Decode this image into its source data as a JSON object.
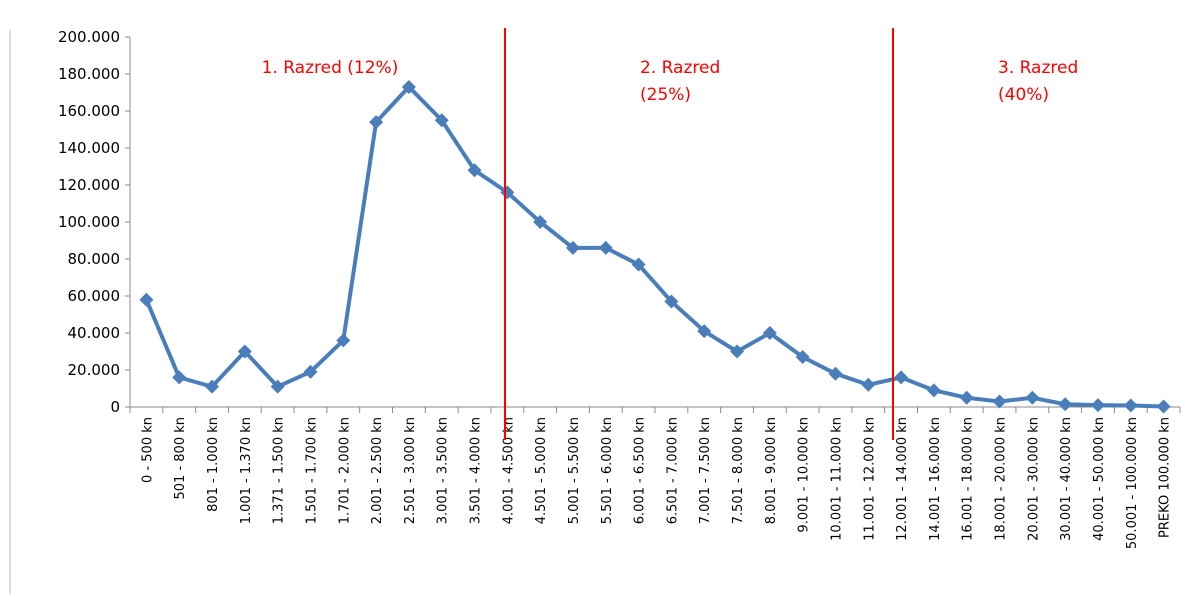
{
  "chart_data": {
    "type": "line",
    "categories": [
      "0 -  500 kn",
      "501 -  800 kn",
      "801 - 1.000 kn",
      "1.001 - 1.370 kn",
      "1.371 - 1.500 kn",
      "1.501 - 1.700 kn",
      "1.701 - 2.000 kn",
      "2.001 - 2.500 kn",
      "2.501 - 3.000 kn",
      "3.001 - 3.500 kn",
      "3.501 - 4.000 kn",
      "4.001 - 4.500 kn",
      "4.501 - 5.000 kn",
      "5.001 - 5.500 kn",
      "5.501 - 6.000 kn",
      "6.001 - 6.500 kn",
      "6.501 - 7.000 kn",
      "7.001 - 7.500 kn",
      "7.501 - 8.000 kn",
      "8.001 - 9.000 kn",
      "9.001 - 10.000 kn",
      "10.001 - 11.000 kn",
      "11.001 - 12.000 kn",
      "12.001 - 14.000 kn",
      "14.001 - 16.000 kn",
      "16.001 - 18.000 kn",
      "18.001 - 20.000 kn",
      "20.001 - 30.000 kn",
      "30.001 - 40.000 kn",
      "40.001 - 50.000 kn",
      "50.001 - 100.000 kn",
      "PREKO 100.000 kn"
    ],
    "series": [
      {
        "color": "#4a7ebb",
        "values": [
          58000,
          16000,
          11000,
          30000,
          11000,
          19000,
          36000,
          154000,
          173000,
          155000,
          128000,
          116000,
          100000,
          86000,
          86000,
          77000,
          57000,
          41000,
          30000,
          40000,
          27000,
          18000,
          12000,
          16000,
          9000,
          5000,
          3000,
          5000,
          1500,
          1000,
          800,
          300
        ]
      }
    ],
    "ylim": [
      0,
      200000
    ],
    "yticks": [
      0,
      {
        "value": 20000,
        "label": "20.000"
      },
      {
        "value": 40000,
        "label": "40.000"
      },
      {
        "value": 60000,
        "label": "60.000"
      },
      {
        "value": 80000,
        "label": "80.000"
      },
      {
        "value": 100000,
        "label": "100.000"
      },
      {
        "value": 120000,
        "label": "120.000"
      },
      {
        "value": 140000,
        "label": "140.000"
      },
      {
        "value": 160000,
        "label": "160.000"
      },
      {
        "value": 180000,
        "label": "180.000"
      },
      {
        "value": 200000,
        "label": "200.000"
      }
    ],
    "annotations": [
      {
        "lines": [
          "1. Razred (12%)"
        ],
        "color": "#ff0000"
      },
      {
        "lines": [
          "2. Razred",
          "(25%)"
        ],
        "color": "#ff0000"
      },
      {
        "lines": [
          "3. Razred",
          "(40%)"
        ],
        "color": "#ff0000"
      }
    ]
  }
}
